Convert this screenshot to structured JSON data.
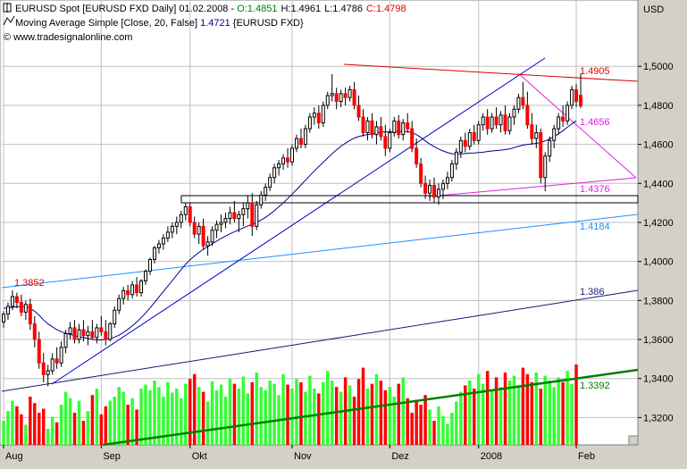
{
  "legend": {
    "line1_prefix": "EURUSD Spot [EURUSD FXD  Daily] 01.02.2008 - ",
    "open": "O:1.4851",
    "high": "H:1.4961",
    "low": "L:1.4786",
    "close": "C:1.4798",
    "line2_prefix": "Moving Average Simple [Close, 20, False] ",
    "ma_value": "1.4721",
    "line2_suffix": " {EURUSD FXD}",
    "line3": "© www.tradesignalonline.com"
  },
  "colors": {
    "background": "#ffffff",
    "frame": "#d4d0c8",
    "bull": "#000000",
    "bear": "#ff0000",
    "ma": "#00008b",
    "volume_up": "#33ff33",
    "volume_down": "#ff0000",
    "resistance": "#e00000",
    "support_magenta": "#e020e0",
    "trend_blue": "#0000cc",
    "trend_lightblue": "#1e90ff",
    "trend_navy": "#191970",
    "volume_trend": "#008000",
    "grid": "#c0c0c0"
  },
  "chart_data": {
    "type": "candlestick",
    "currency_label": "USD",
    "y_axis": {
      "range": [
        1.306,
        1.512
      ],
      "ticks": [
        "1,3200",
        "1,3400",
        "1,3600",
        "1,3800",
        "1,4000",
        "1,4200",
        "1,4400",
        "1,4600",
        "1,4800",
        "1,5000"
      ]
    },
    "x_axis": {
      "ticks": [
        {
          "label": "Aug",
          "index": 0
        },
        {
          "label": "Sep",
          "index": 22
        },
        {
          "label": "Okt",
          "index": 42
        },
        {
          "label": "Nov",
          "index": 65
        },
        {
          "label": "Dez",
          "index": 87
        },
        {
          "label": "2008",
          "index": 107
        },
        {
          "label": "Feb",
          "index": 129
        }
      ]
    },
    "candles": [
      {
        "o": 1.369,
        "h": 1.3745,
        "l": 1.366,
        "c": 1.373
      },
      {
        "o": 1.373,
        "h": 1.379,
        "l": 1.37,
        "c": 1.377
      },
      {
        "o": 1.377,
        "h": 1.3852,
        "l": 1.375,
        "c": 1.382
      },
      {
        "o": 1.382,
        "h": 1.384,
        "l": 1.376,
        "c": 1.379
      },
      {
        "o": 1.379,
        "h": 1.383,
        "l": 1.372,
        "c": 1.374
      },
      {
        "o": 1.374,
        "h": 1.38,
        "l": 1.37,
        "c": 1.378
      },
      {
        "o": 1.378,
        "h": 1.381,
        "l": 1.365,
        "c": 1.368
      },
      {
        "o": 1.368,
        "h": 1.372,
        "l": 1.356,
        "c": 1.36
      },
      {
        "o": 1.36,
        "h": 1.364,
        "l": 1.345,
        "c": 1.348
      },
      {
        "o": 1.348,
        "h": 1.353,
        "l": 1.338,
        "c": 1.342
      },
      {
        "o": 1.342,
        "h": 1.347,
        "l": 1.336,
        "c": 1.344
      },
      {
        "o": 1.344,
        "h": 1.353,
        "l": 1.342,
        "c": 1.35
      },
      {
        "o": 1.35,
        "h": 1.356,
        "l": 1.345,
        "c": 1.348
      },
      {
        "o": 1.348,
        "h": 1.359,
        "l": 1.346,
        "c": 1.356
      },
      {
        "o": 1.356,
        "h": 1.365,
        "l": 1.353,
        "c": 1.363
      },
      {
        "o": 1.363,
        "h": 1.369,
        "l": 1.36,
        "c": 1.366
      },
      {
        "o": 1.366,
        "h": 1.37,
        "l": 1.358,
        "c": 1.36
      },
      {
        "o": 1.36,
        "h": 1.368,
        "l": 1.358,
        "c": 1.365
      },
      {
        "o": 1.365,
        "h": 1.37,
        "l": 1.359,
        "c": 1.362
      },
      {
        "o": 1.362,
        "h": 1.367,
        "l": 1.357,
        "c": 1.364
      },
      {
        "o": 1.364,
        "h": 1.37,
        "l": 1.36,
        "c": 1.361
      },
      {
        "o": 1.361,
        "h": 1.368,
        "l": 1.358,
        "c": 1.366
      },
      {
        "o": 1.366,
        "h": 1.372,
        "l": 1.362,
        "c": 1.364
      },
      {
        "o": 1.364,
        "h": 1.37,
        "l": 1.357,
        "c": 1.36
      },
      {
        "o": 1.36,
        "h": 1.369,
        "l": 1.359,
        "c": 1.368
      },
      {
        "o": 1.368,
        "h": 1.377,
        "l": 1.366,
        "c": 1.375
      },
      {
        "o": 1.375,
        "h": 1.383,
        "l": 1.373,
        "c": 1.381
      },
      {
        "o": 1.381,
        "h": 1.387,
        "l": 1.378,
        "c": 1.385
      },
      {
        "o": 1.385,
        "h": 1.388,
        "l": 1.38,
        "c": 1.383
      },
      {
        "o": 1.383,
        "h": 1.39,
        "l": 1.381,
        "c": 1.388
      },
      {
        "o": 1.388,
        "h": 1.392,
        "l": 1.382,
        "c": 1.384
      },
      {
        "o": 1.384,
        "h": 1.391,
        "l": 1.382,
        "c": 1.39
      },
      {
        "o": 1.39,
        "h": 1.396,
        "l": 1.388,
        "c": 1.395
      },
      {
        "o": 1.395,
        "h": 1.402,
        "l": 1.393,
        "c": 1.401
      },
      {
        "o": 1.401,
        "h": 1.408,
        "l": 1.399,
        "c": 1.407
      },
      {
        "o": 1.407,
        "h": 1.411,
        "l": 1.404,
        "c": 1.409
      },
      {
        "o": 1.409,
        "h": 1.414,
        "l": 1.406,
        "c": 1.412
      },
      {
        "o": 1.412,
        "h": 1.418,
        "l": 1.41,
        "c": 1.415
      },
      {
        "o": 1.415,
        "h": 1.42,
        "l": 1.412,
        "c": 1.418
      },
      {
        "o": 1.418,
        "h": 1.423,
        "l": 1.414,
        "c": 1.42
      },
      {
        "o": 1.42,
        "h": 1.426,
        "l": 1.417,
        "c": 1.424
      },
      {
        "o": 1.424,
        "h": 1.43,
        "l": 1.421,
        "c": 1.428
      },
      {
        "o": 1.428,
        "h": 1.43,
        "l": 1.418,
        "c": 1.42
      },
      {
        "o": 1.42,
        "h": 1.423,
        "l": 1.412,
        "c": 1.414
      },
      {
        "o": 1.414,
        "h": 1.42,
        "l": 1.409,
        "c": 1.418
      },
      {
        "o": 1.418,
        "h": 1.422,
        "l": 1.406,
        "c": 1.408
      },
      {
        "o": 1.408,
        "h": 1.413,
        "l": 1.403,
        "c": 1.41
      },
      {
        "o": 1.41,
        "h": 1.418,
        "l": 1.408,
        "c": 1.416
      },
      {
        "o": 1.416,
        "h": 1.421,
        "l": 1.412,
        "c": 1.419
      },
      {
        "o": 1.419,
        "h": 1.424,
        "l": 1.415,
        "c": 1.42
      },
      {
        "o": 1.42,
        "h": 1.425,
        "l": 1.417,
        "c": 1.422
      },
      {
        "o": 1.422,
        "h": 1.428,
        "l": 1.419,
        "c": 1.425
      },
      {
        "o": 1.425,
        "h": 1.431,
        "l": 1.42,
        "c": 1.422
      },
      {
        "o": 1.422,
        "h": 1.426,
        "l": 1.415,
        "c": 1.424
      },
      {
        "o": 1.424,
        "h": 1.43,
        "l": 1.418,
        "c": 1.427
      },
      {
        "o": 1.427,
        "h": 1.434,
        "l": 1.422,
        "c": 1.43
      },
      {
        "o": 1.43,
        "h": 1.435,
        "l": 1.413,
        "c": 1.418
      },
      {
        "o": 1.418,
        "h": 1.431,
        "l": 1.416,
        "c": 1.429
      },
      {
        "o": 1.429,
        "h": 1.436,
        "l": 1.427,
        "c": 1.434
      },
      {
        "o": 1.434,
        "h": 1.44,
        "l": 1.431,
        "c": 1.438
      },
      {
        "o": 1.438,
        "h": 1.445,
        "l": 1.436,
        "c": 1.443
      },
      {
        "o": 1.443,
        "h": 1.45,
        "l": 1.44,
        "c": 1.448
      },
      {
        "o": 1.448,
        "h": 1.452,
        "l": 1.444,
        "c": 1.45
      },
      {
        "o": 1.45,
        "h": 1.455,
        "l": 1.447,
        "c": 1.453
      },
      {
        "o": 1.453,
        "h": 1.458,
        "l": 1.448,
        "c": 1.451
      },
      {
        "o": 1.451,
        "h": 1.46,
        "l": 1.449,
        "c": 1.458
      },
      {
        "o": 1.458,
        "h": 1.465,
        "l": 1.456,
        "c": 1.463
      },
      {
        "o": 1.463,
        "h": 1.468,
        "l": 1.458,
        "c": 1.46
      },
      {
        "o": 1.46,
        "h": 1.47,
        "l": 1.458,
        "c": 1.468
      },
      {
        "o": 1.468,
        "h": 1.476,
        "l": 1.466,
        "c": 1.474
      },
      {
        "o": 1.474,
        "h": 1.479,
        "l": 1.47,
        "c": 1.476
      },
      {
        "o": 1.476,
        "h": 1.48,
        "l": 1.468,
        "c": 1.471
      },
      {
        "o": 1.471,
        "h": 1.482,
        "l": 1.469,
        "c": 1.48
      },
      {
        "o": 1.48,
        "h": 1.487,
        "l": 1.478,
        "c": 1.485
      },
      {
        "o": 1.485,
        "h": 1.496,
        "l": 1.482,
        "c": 1.486
      },
      {
        "o": 1.486,
        "h": 1.489,
        "l": 1.478,
        "c": 1.482
      },
      {
        "o": 1.482,
        "h": 1.488,
        "l": 1.479,
        "c": 1.486
      },
      {
        "o": 1.486,
        "h": 1.489,
        "l": 1.48,
        "c": 1.484
      },
      {
        "o": 1.484,
        "h": 1.49,
        "l": 1.482,
        "c": 1.488
      },
      {
        "o": 1.488,
        "h": 1.492,
        "l": 1.478,
        "c": 1.48
      },
      {
        "o": 1.48,
        "h": 1.485,
        "l": 1.472,
        "c": 1.474
      },
      {
        "o": 1.474,
        "h": 1.478,
        "l": 1.464,
        "c": 1.466
      },
      {
        "o": 1.466,
        "h": 1.474,
        "l": 1.462,
        "c": 1.472
      },
      {
        "o": 1.472,
        "h": 1.476,
        "l": 1.463,
        "c": 1.465
      },
      {
        "o": 1.465,
        "h": 1.472,
        "l": 1.46,
        "c": 1.469
      },
      {
        "o": 1.469,
        "h": 1.474,
        "l": 1.462,
        "c": 1.464
      },
      {
        "o": 1.464,
        "h": 1.47,
        "l": 1.454,
        "c": 1.458
      },
      {
        "o": 1.458,
        "h": 1.468,
        "l": 1.456,
        "c": 1.466
      },
      {
        "o": 1.466,
        "h": 1.474,
        "l": 1.464,
        "c": 1.472
      },
      {
        "o": 1.472,
        "h": 1.475,
        "l": 1.463,
        "c": 1.465
      },
      {
        "o": 1.465,
        "h": 1.473,
        "l": 1.462,
        "c": 1.471
      },
      {
        "o": 1.471,
        "h": 1.476,
        "l": 1.466,
        "c": 1.468
      },
      {
        "o": 1.468,
        "h": 1.472,
        "l": 1.456,
        "c": 1.458
      },
      {
        "o": 1.458,
        "h": 1.463,
        "l": 1.448,
        "c": 1.45
      },
      {
        "o": 1.45,
        "h": 1.453,
        "l": 1.438,
        "c": 1.44
      },
      {
        "o": 1.44,
        "h": 1.444,
        "l": 1.432,
        "c": 1.435
      },
      {
        "o": 1.435,
        "h": 1.442,
        "l": 1.431,
        "c": 1.439
      },
      {
        "o": 1.439,
        "h": 1.443,
        "l": 1.43,
        "c": 1.433
      },
      {
        "o": 1.433,
        "h": 1.44,
        "l": 1.429,
        "c": 1.437
      },
      {
        "o": 1.437,
        "h": 1.442,
        "l": 1.432,
        "c": 1.44
      },
      {
        "o": 1.44,
        "h": 1.446,
        "l": 1.437,
        "c": 1.443
      },
      {
        "o": 1.443,
        "h": 1.452,
        "l": 1.441,
        "c": 1.45
      },
      {
        "o": 1.45,
        "h": 1.458,
        "l": 1.447,
        "c": 1.456
      },
      {
        "o": 1.456,
        "h": 1.464,
        "l": 1.453,
        "c": 1.462
      },
      {
        "o": 1.462,
        "h": 1.466,
        "l": 1.456,
        "c": 1.459
      },
      {
        "o": 1.459,
        "h": 1.468,
        "l": 1.457,
        "c": 1.466
      },
      {
        "o": 1.466,
        "h": 1.47,
        "l": 1.46,
        "c": 1.462
      },
      {
        "o": 1.462,
        "h": 1.472,
        "l": 1.46,
        "c": 1.47
      },
      {
        "o": 1.47,
        "h": 1.476,
        "l": 1.467,
        "c": 1.474
      },
      {
        "o": 1.474,
        "h": 1.478,
        "l": 1.465,
        "c": 1.468
      },
      {
        "o": 1.468,
        "h": 1.476,
        "l": 1.466,
        "c": 1.474
      },
      {
        "o": 1.474,
        "h": 1.479,
        "l": 1.468,
        "c": 1.47
      },
      {
        "o": 1.47,
        "h": 1.477,
        "l": 1.466,
        "c": 1.475
      },
      {
        "o": 1.475,
        "h": 1.48,
        "l": 1.465,
        "c": 1.467
      },
      {
        "o": 1.467,
        "h": 1.476,
        "l": 1.465,
        "c": 1.474
      },
      {
        "o": 1.474,
        "h": 1.48,
        "l": 1.47,
        "c": 1.478
      },
      {
        "o": 1.478,
        "h": 1.486,
        "l": 1.476,
        "c": 1.484
      },
      {
        "o": 1.484,
        "h": 1.492,
        "l": 1.478,
        "c": 1.48
      },
      {
        "o": 1.48,
        "h": 1.487,
        "l": 1.468,
        "c": 1.47
      },
      {
        "o": 1.47,
        "h": 1.476,
        "l": 1.46,
        "c": 1.463
      },
      {
        "o": 1.463,
        "h": 1.47,
        "l": 1.458,
        "c": 1.466
      },
      {
        "o": 1.466,
        "h": 1.468,
        "l": 1.44,
        "c": 1.443
      },
      {
        "o": 1.443,
        "h": 1.456,
        "l": 1.436,
        "c": 1.454
      },
      {
        "o": 1.454,
        "h": 1.464,
        "l": 1.451,
        "c": 1.462
      },
      {
        "o": 1.462,
        "h": 1.47,
        "l": 1.458,
        "c": 1.468
      },
      {
        "o": 1.468,
        "h": 1.476,
        "l": 1.465,
        "c": 1.474
      },
      {
        "o": 1.474,
        "h": 1.48,
        "l": 1.469,
        "c": 1.472
      },
      {
        "o": 1.472,
        "h": 1.482,
        "l": 1.47,
        "c": 1.48
      },
      {
        "o": 1.48,
        "h": 1.49,
        "l": 1.478,
        "c": 1.488
      },
      {
        "o": 1.488,
        "h": 1.491,
        "l": 1.479,
        "c": 1.482
      },
      {
        "o": 1.4851,
        "h": 1.4961,
        "l": 1.4786,
        "c": 1.4798
      }
    ],
    "ma20": [
      1.376,
      1.3762,
      1.3765,
      1.3768,
      1.377,
      1.3768,
      1.376,
      1.3745,
      1.3725,
      1.37,
      1.368,
      1.3665,
      1.365,
      1.364,
      1.3632,
      1.3626,
      1.362,
      1.3614,
      1.361,
      1.3606,
      1.36,
      1.3598,
      1.3598,
      1.36,
      1.3605,
      1.3612,
      1.3622,
      1.3636,
      1.3652,
      1.367,
      1.369,
      1.3712,
      1.3736,
      1.3762,
      1.379,
      1.3818,
      1.3846,
      1.3874,
      1.3902,
      1.393,
      1.3958,
      1.3985,
      1.4008,
      1.4028,
      1.4046,
      1.4062,
      1.4076,
      1.409,
      1.4104,
      1.4118,
      1.413,
      1.4142,
      1.4152,
      1.4162,
      1.4172,
      1.4182,
      1.419,
      1.42,
      1.4212,
      1.4226,
      1.4242,
      1.426,
      1.428,
      1.43,
      1.4322,
      1.4345,
      1.4368,
      1.4392,
      1.4416,
      1.444,
      1.4464,
      1.4486,
      1.4508,
      1.453,
      1.4552,
      1.4572,
      1.459,
      1.4606,
      1.462,
      1.4632,
      1.464,
      1.4646,
      1.465,
      1.4654,
      1.4658,
      1.4662,
      1.4664,
      1.4664,
      1.4665,
      1.4666,
      1.4667,
      1.4665,
      1.466,
      1.465,
      1.4635,
      1.4618,
      1.4602,
      1.4588,
      1.4576,
      1.4566,
      1.4558,
      1.4552,
      1.455,
      1.4551,
      1.4553,
      1.4555,
      1.4556,
      1.4558,
      1.456,
      1.4563,
      1.4566,
      1.4568,
      1.457,
      1.4573,
      1.4577,
      1.4583,
      1.459,
      1.4596,
      1.46,
      1.4602,
      1.4605,
      1.461,
      1.4618,
      1.4628,
      1.464,
      1.4654,
      1.467,
      1.4688,
      1.4705,
      1.4721
    ],
    "volume": [
      30,
      42,
      55,
      48,
      38,
      25,
      60,
      52,
      40,
      45,
      20,
      35,
      28,
      50,
      66,
      58,
      40,
      55,
      30,
      42,
      62,
      70,
      38,
      48,
      55,
      60,
      72,
      66,
      50,
      58,
      44,
      70,
      75,
      68,
      80,
      72,
      60,
      78,
      65,
      70,
      58,
      76,
      82,
      88,
      72,
      66,
      54,
      79,
      68,
      75,
      60,
      82,
      76,
      70,
      85,
      64,
      78,
      90,
      72,
      68,
      80,
      76,
      62,
      88,
      75,
      70,
      82,
      78,
      66,
      86,
      70,
      64,
      78,
      92,
      80,
      72,
      66,
      84,
      74,
      60,
      82,
      96,
      70,
      76,
      88,
      80,
      68,
      72,
      60,
      76,
      84,
      58,
      40,
      56,
      50,
      62,
      44,
      30,
      48,
      36,
      26,
      40,
      54,
      66,
      74,
      80,
      70,
      88,
      76,
      92,
      68,
      84,
      72,
      90,
      80,
      86,
      74,
      96,
      88,
      78,
      90,
      70,
      86,
      80,
      72,
      84,
      78,
      92,
      76,
      100
    ],
    "labels": {
      "resistance_value": "1.4905",
      "upper_magenta_value": "1.4656",
      "lower_magenta_value": "1.4376",
      "lightblue_value": "1.4184",
      "aug_high_value": "1.3852",
      "navy_value": "1.386",
      "volume_trend_value": "1.3392"
    }
  }
}
